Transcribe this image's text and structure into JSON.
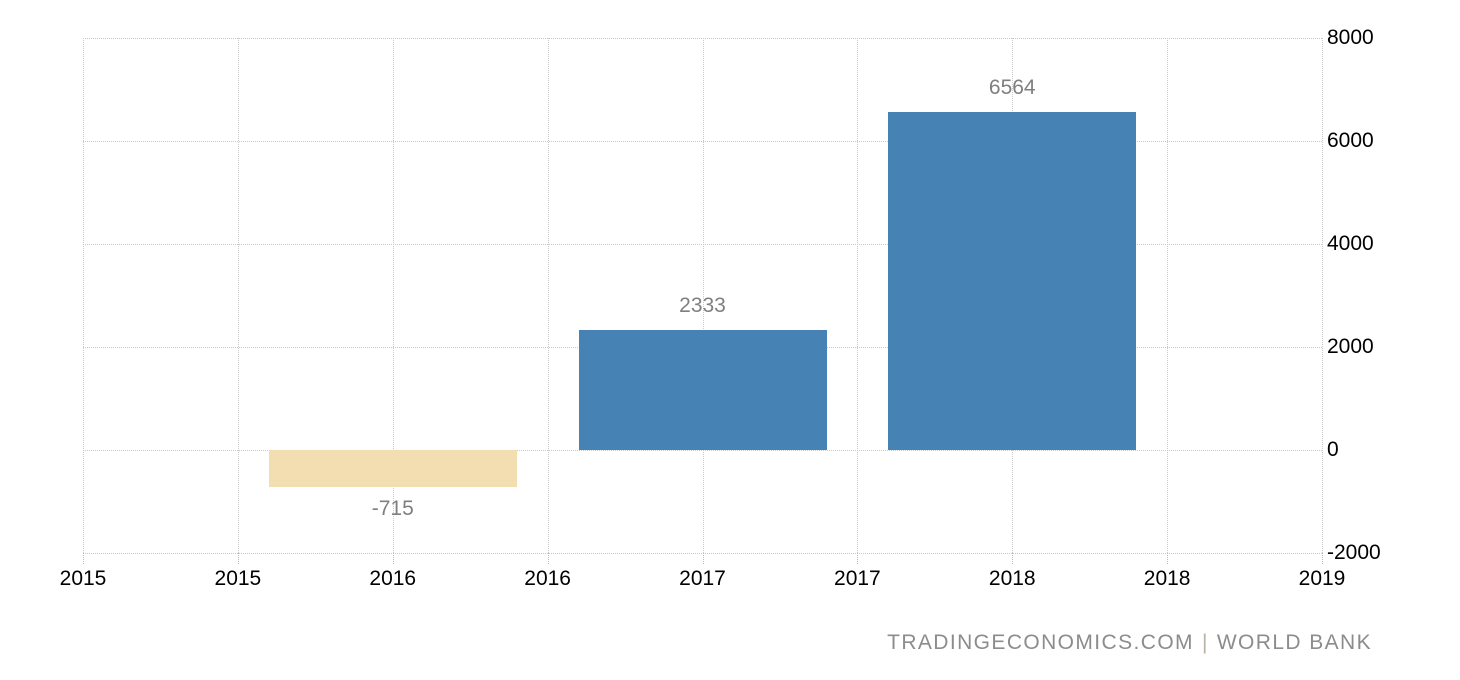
{
  "chart_data": {
    "type": "bar",
    "title": "",
    "xlabel": "",
    "ylabel": "",
    "x_tick_labels": [
      "2015",
      "2015",
      "2016",
      "2016",
      "2017",
      "2017",
      "2018",
      "2018",
      "2019"
    ],
    "y_ticks": [
      8000,
      6000,
      4000,
      2000,
      0,
      -2000
    ],
    "ylim": [
      -2000,
      8000
    ],
    "grid": true,
    "legend": false,
    "bars": [
      {
        "category": "2016",
        "value": -715,
        "label": "-715",
        "color_key": "negative"
      },
      {
        "category": "2017",
        "value": 2333,
        "label": "2333",
        "color_key": "positive"
      },
      {
        "category": "2018",
        "value": 6564,
        "label": "6564",
        "color_key": "positive"
      }
    ],
    "colors": {
      "positive": "#4682b4",
      "negative": "#f3deb1"
    },
    "gridline_color": "#c9c9c9",
    "axis_label_color": "#000000",
    "value_label_color": "#7f7f7f"
  },
  "watermark": {
    "source": "TRADINGECONOMICS.COM",
    "separator": "|",
    "provider": "WORLD BANK",
    "text_color": "#8c8c8c",
    "separator_color": "#bab1a4"
  }
}
